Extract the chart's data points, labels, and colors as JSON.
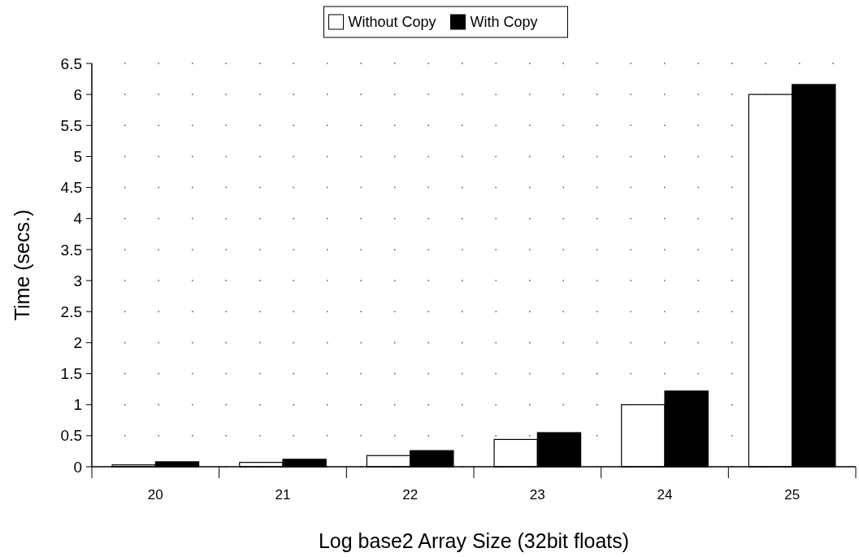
{
  "chart_data": {
    "type": "bar",
    "xlabel": "Log base2 Array Size (32bit floats)",
    "ylabel": "Time (secs.)",
    "categories": [
      "20",
      "21",
      "22",
      "23",
      "24",
      "25"
    ],
    "series": [
      {
        "name": "Without Copy",
        "color": "#ffffff",
        "values": [
          0.03,
          0.07,
          0.18,
          0.44,
          1.0,
          6.0
        ]
      },
      {
        "name": "With Copy",
        "color": "#000000",
        "values": [
          0.08,
          0.12,
          0.26,
          0.55,
          1.22,
          6.16
        ]
      }
    ],
    "ylim": [
      0,
      6.5
    ],
    "yticks": [
      0,
      0.5,
      1,
      1.5,
      2,
      2.5,
      3,
      3.5,
      4,
      4.5,
      5,
      5.5,
      6,
      6.5
    ],
    "grid": "y",
    "legend": "top"
  }
}
